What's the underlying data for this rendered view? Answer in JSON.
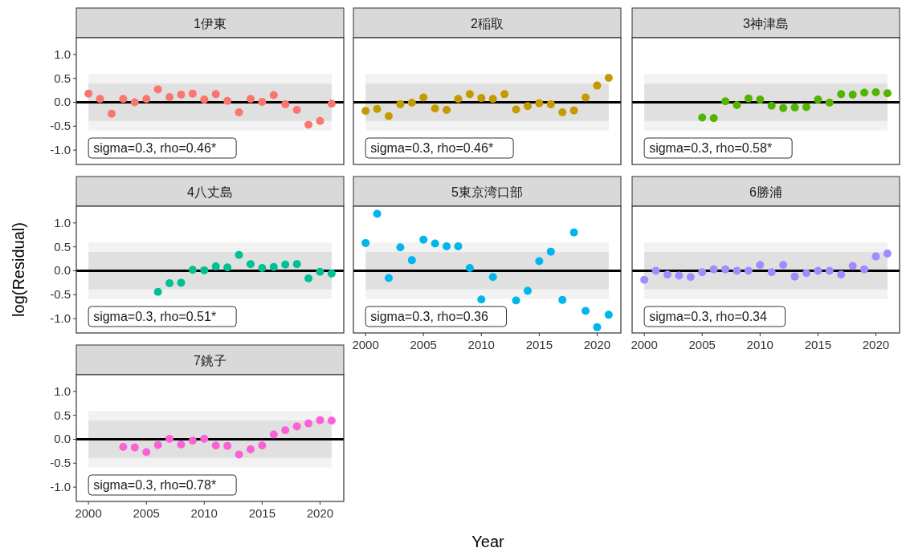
{
  "chart_data": [
    {
      "type": "scatter",
      "title": "1伊東",
      "ylabel": "log(Residual)",
      "annotations": [
        "sigma=0.3, rho=0.46*"
      ],
      "x": [
        2000,
        2001,
        2002,
        2003,
        2004,
        2005,
        2006,
        2007,
        2008,
        2009,
        2010,
        2011,
        2012,
        2013,
        2014,
        2015,
        2016,
        2017,
        2018,
        2019,
        2020,
        2021
      ],
      "series": [
        {
          "color": "#f8766d",
          "values": [
            0.18,
            0.07,
            -0.24,
            0.07,
            0.0,
            0.07,
            0.27,
            0.11,
            0.16,
            0.18,
            0.06,
            0.17,
            0.03,
            -0.21,
            0.07,
            0.01,
            0.15,
            -0.04,
            -0.16,
            -0.47,
            -0.39,
            -0.03
          ]
        }
      ],
      "xlim": [
        1998.95,
        2022.05
      ],
      "ylim": [
        -1.3,
        1.35
      ],
      "yticks": [
        {
          "value": -1,
          "label": "-1.0"
        },
        {
          "value": -0.5,
          "label": "-0.5"
        },
        {
          "value": 0,
          "label": "0.0"
        },
        {
          "value": 0.5,
          "label": "0.5"
        },
        {
          "value": 1,
          "label": "1.0"
        }
      ],
      "ref_lines": [
        {
          "axis": "y",
          "value": 0,
          "color": "#000000"
        }
      ],
      "bands": [
        {
          "axis": "y",
          "from": -0.59,
          "to": 0.59,
          "color": "#f2f2f2"
        },
        {
          "axis": "y",
          "from": -0.39,
          "to": 0.39,
          "color": "#e0e0e0"
        }
      ],
      "tick_labels": "y"
    },
    {
      "type": "scatter",
      "title": "2稲取",
      "annotations": [
        "sigma=0.3, rho=0.46*"
      ],
      "x": [
        2000,
        2001,
        2002,
        2003,
        2004,
        2005,
        2006,
        2007,
        2008,
        2009,
        2010,
        2011,
        2012,
        2013,
        2014,
        2015,
        2016,
        2017,
        2018,
        2019,
        2020,
        2021
      ],
      "series": [
        {
          "color": "#c49a00",
          "values": [
            -0.18,
            -0.14,
            -0.29,
            -0.04,
            -0.01,
            0.1,
            -0.13,
            -0.16,
            0.07,
            0.17,
            0.09,
            0.07,
            0.17,
            -0.15,
            -0.08,
            -0.02,
            -0.04,
            -0.21,
            -0.17,
            0.1,
            0.35,
            0.51
          ]
        }
      ],
      "xlim": [
        1998.95,
        2022.05
      ],
      "ylim": [
        -1.3,
        1.35
      ],
      "ref_lines": [
        {
          "axis": "y",
          "value": 0,
          "color": "#000000"
        }
      ],
      "bands": [
        {
          "axis": "y",
          "from": -0.59,
          "to": 0.59,
          "color": "#f2f2f2"
        },
        {
          "axis": "y",
          "from": -0.39,
          "to": 0.39,
          "color": "#e0e0e0"
        }
      ],
      "tick_labels": false
    },
    {
      "type": "scatter",
      "title": "3神津島",
      "annotations": [
        "sigma=0.3, rho=0.58*"
      ],
      "x": [
        2005,
        2006,
        2007,
        2008,
        2009,
        2010,
        2011,
        2012,
        2013,
        2014,
        2015,
        2016,
        2017,
        2018,
        2019,
        2020,
        2021
      ],
      "series": [
        {
          "color": "#53b400",
          "values": [
            -0.32,
            -0.33,
            0.02,
            -0.06,
            0.08,
            0.06,
            -0.07,
            -0.12,
            -0.11,
            -0.1,
            0.06,
            -0.01,
            0.17,
            0.16,
            0.2,
            0.21,
            0.19
          ]
        }
      ],
      "xlim": [
        1998.95,
        2022.05
      ],
      "ylim": [
        -1.3,
        1.35
      ],
      "ref_lines": [
        {
          "axis": "y",
          "value": 0,
          "color": "#000000"
        }
      ],
      "bands": [
        {
          "axis": "y",
          "from": -0.59,
          "to": 0.59,
          "color": "#f2f2f2"
        },
        {
          "axis": "y",
          "from": -0.39,
          "to": 0.39,
          "color": "#e0e0e0"
        }
      ],
      "tick_labels": false
    },
    {
      "type": "scatter",
      "title": "4八丈島",
      "annotations": [
        "sigma=0.3, rho=0.51*"
      ],
      "x": [
        2006,
        2007,
        2008,
        2009,
        2010,
        2011,
        2012,
        2013,
        2014,
        2015,
        2016,
        2017,
        2018,
        2019,
        2020,
        2021
      ],
      "series": [
        {
          "color": "#00c094",
          "values": [
            -0.44,
            -0.26,
            -0.25,
            0.02,
            0.01,
            0.09,
            0.07,
            0.33,
            0.14,
            0.06,
            0.08,
            0.13,
            0.14,
            -0.16,
            -0.02,
            -0.06
          ]
        }
      ],
      "xlim": [
        1998.95,
        2022.05
      ],
      "ylim": [
        -1.3,
        1.35
      ],
      "yticks": [
        {
          "value": -1,
          "label": "-1.0"
        },
        {
          "value": -0.5,
          "label": "-0.5"
        },
        {
          "value": 0,
          "label": "0.0"
        },
        {
          "value": 0.5,
          "label": "0.5"
        },
        {
          "value": 1,
          "label": "1.0"
        }
      ],
      "ref_lines": [
        {
          "axis": "y",
          "value": 0,
          "color": "#000000"
        }
      ],
      "bands": [
        {
          "axis": "y",
          "from": -0.59,
          "to": 0.59,
          "color": "#f2f2f2"
        },
        {
          "axis": "y",
          "from": -0.39,
          "to": 0.39,
          "color": "#e0e0e0"
        }
      ],
      "tick_labels": "y"
    },
    {
      "type": "scatter",
      "title": "5東京湾口部",
      "xlabel": "Year",
      "annotations": [
        "sigma=0.3, rho=0.36"
      ],
      "x": [
        2000,
        2001,
        2002,
        2003,
        2004,
        2005,
        2006,
        2007,
        2008,
        2009,
        2010,
        2011,
        2013,
        2014,
        2015,
        2016,
        2017,
        2018,
        2019,
        2020,
        2021
      ],
      "series": [
        {
          "color": "#00b6eb",
          "values": [
            0.58,
            1.19,
            -0.15,
            0.49,
            0.22,
            0.65,
            0.57,
            0.51,
            0.51,
            0.06,
            -0.6,
            -0.13,
            -0.62,
            -0.42,
            0.2,
            0.4,
            -0.61,
            0.8,
            -0.84,
            -1.18,
            -0.92
          ]
        }
      ],
      "xlim": [
        1998.95,
        2022.05
      ],
      "ylim": [
        -1.3,
        1.35
      ],
      "xticks": [
        2000,
        2005,
        2010,
        2015,
        2020
      ],
      "ref_lines": [
        {
          "axis": "y",
          "value": 0,
          "color": "#000000"
        }
      ],
      "bands": [
        {
          "axis": "y",
          "from": -0.59,
          "to": 0.59,
          "color": "#f2f2f2"
        },
        {
          "axis": "y",
          "from": -0.39,
          "to": 0.39,
          "color": "#e0e0e0"
        }
      ],
      "tick_labels": "x"
    },
    {
      "type": "scatter",
      "title": "6勝浦",
      "annotations": [
        "sigma=0.3, rho=0.34"
      ],
      "x": [
        2000,
        2001,
        2002,
        2003,
        2004,
        2005,
        2006,
        2007,
        2008,
        2009,
        2010,
        2011,
        2012,
        2013,
        2014,
        2015,
        2016,
        2017,
        2018,
        2019,
        2020,
        2021
      ],
      "series": [
        {
          "color": "#a58aff",
          "values": [
            -0.19,
            0.0,
            -0.08,
            -0.1,
            -0.13,
            -0.03,
            0.03,
            0.03,
            0.0,
            0.0,
            0.12,
            -0.03,
            0.12,
            -0.12,
            -0.05,
            0.0,
            0.0,
            -0.08,
            0.1,
            0.03,
            0.3,
            0.36
          ]
        }
      ],
      "xlim": [
        1998.95,
        2022.05
      ],
      "ylim": [
        -1.3,
        1.35
      ],
      "xticks": [
        2000,
        2005,
        2010,
        2015,
        2020
      ],
      "ref_lines": [
        {
          "axis": "y",
          "value": 0,
          "color": "#000000"
        }
      ],
      "bands": [
        {
          "axis": "y",
          "from": -0.59,
          "to": 0.59,
          "color": "#f2f2f2"
        },
        {
          "axis": "y",
          "from": -0.39,
          "to": 0.39,
          "color": "#e0e0e0"
        }
      ],
      "tick_labels": "x"
    },
    {
      "type": "scatter",
      "title": "7銚子",
      "annotations": [
        "sigma=0.3, rho=0.78*"
      ],
      "x": [
        2003,
        2004,
        2005,
        2006,
        2007,
        2008,
        2009,
        2010,
        2011,
        2012,
        2013,
        2014,
        2015,
        2016,
        2017,
        2018,
        2019,
        2020,
        2021
      ],
      "series": [
        {
          "color": "#fb61d7",
          "values": [
            -0.16,
            -0.17,
            -0.27,
            -0.12,
            0.01,
            -0.11,
            -0.03,
            0.01,
            -0.13,
            -0.14,
            -0.32,
            -0.21,
            -0.13,
            0.1,
            0.19,
            0.27,
            0.33,
            0.4,
            0.39
          ]
        }
      ],
      "xlim": [
        1998.95,
        2022.05
      ],
      "ylim": [
        -1.3,
        1.35
      ],
      "xticks": [
        2000,
        2005,
        2010,
        2015,
        2020
      ],
      "yticks": [
        {
          "value": -1,
          "label": "-1.0"
        },
        {
          "value": -0.5,
          "label": "-0.5"
        },
        {
          "value": 0,
          "label": "0.0"
        },
        {
          "value": 0.5,
          "label": "0.5"
        },
        {
          "value": 1,
          "label": "1.0"
        }
      ],
      "ref_lines": [
        {
          "axis": "y",
          "value": 0,
          "color": "#000000"
        }
      ],
      "bands": [
        {
          "axis": "y",
          "from": -0.59,
          "to": 0.59,
          "color": "#f2f2f2"
        },
        {
          "axis": "y",
          "from": -0.39,
          "to": 0.39,
          "color": "#e0e0e0"
        }
      ]
    }
  ]
}
